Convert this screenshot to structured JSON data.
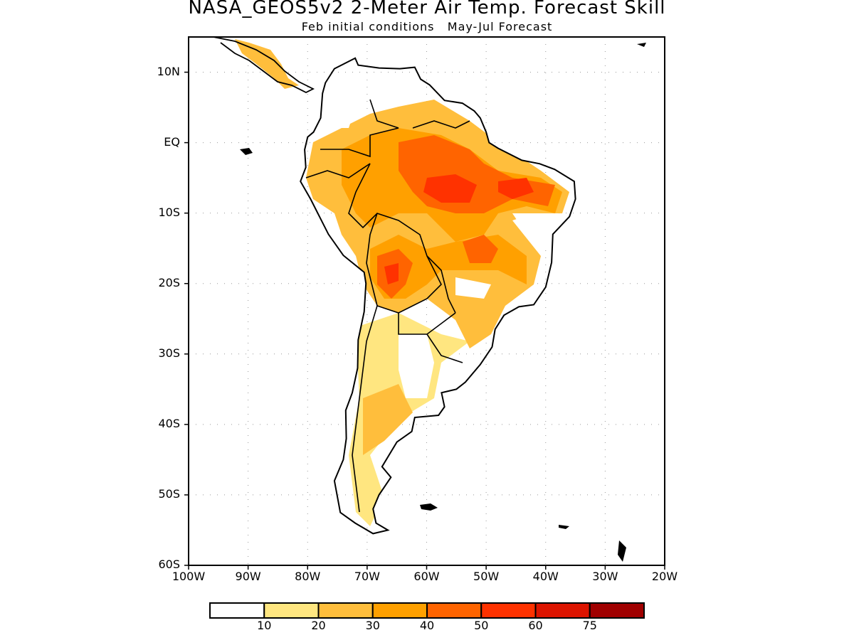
{
  "title": "NASA_GEOS5v2 2-Meter Air Temp. Forecast Skill",
  "subtitle": "Feb initial conditions   May-Jul Forecast",
  "map": {
    "lon_range": [
      -100,
      -20
    ],
    "lat_range": [
      -60,
      15
    ],
    "y_tick_labels": [
      {
        "lat": 10,
        "label": "10N"
      },
      {
        "lat": 0,
        "label": "EQ"
      },
      {
        "lat": -10,
        "label": "10S"
      },
      {
        "lat": -20,
        "label": "20S"
      },
      {
        "lat": -30,
        "label": "30S"
      },
      {
        "lat": -40,
        "label": "40S"
      },
      {
        "lat": -50,
        "label": "50S"
      },
      {
        "lat": -60,
        "label": "60S"
      }
    ],
    "x_tick_labels": [
      {
        "lon": -100,
        "label": "100W"
      },
      {
        "lon": -90,
        "label": "90W"
      },
      {
        "lon": -80,
        "label": "80W"
      },
      {
        "lon": -70,
        "label": "70W"
      },
      {
        "lon": -60,
        "label": "60W"
      },
      {
        "lon": -50,
        "label": "50W"
      },
      {
        "lon": -40,
        "label": "40W"
      },
      {
        "lon": -30,
        "label": "30W"
      },
      {
        "lon": -20,
        "label": "20W"
      }
    ]
  },
  "colorbar": {
    "colors": [
      "#ffffff",
      "#ffe680",
      "#ffbe3c",
      "#ffa000",
      "#ff6400",
      "#ff3200",
      "#dc1400",
      "#a00000"
    ],
    "labels": [
      "10",
      "20",
      "30",
      "40",
      "50",
      "60",
      "75"
    ]
  }
}
